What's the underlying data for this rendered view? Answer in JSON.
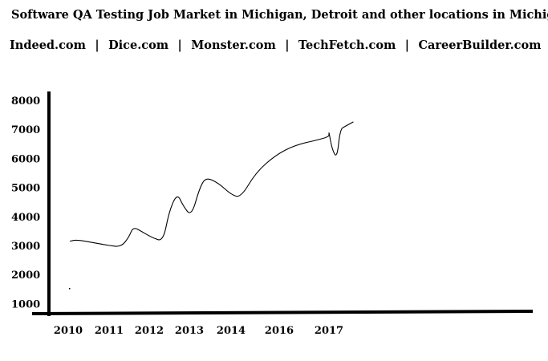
{
  "chart_data": {
    "type": "line",
    "title": "Software QA Testing Job Market in Michigan, Detroit and other locations in Michigan",
    "sources": [
      "Indeed.com",
      "Dice.com",
      "Monster.com",
      "TechFetch.com",
      "CareerBuilder.com"
    ],
    "xlabel": "",
    "ylabel": "",
    "y_ticks": [
      1000,
      2000,
      3000,
      4000,
      5000,
      6000,
      7000,
      8000
    ],
    "x_ticks": [
      "2010",
      "2011",
      "2012",
      "2013",
      "2014",
      "2016",
      "2017"
    ],
    "grid": false,
    "series": [
      {
        "values": [
          {
            "x": 2010.05,
            "y": 3150
          },
          {
            "x": 2010.2,
            "y": 3200
          },
          {
            "x": 2010.6,
            "y": 3100
          },
          {
            "x": 2011.0,
            "y": 3000
          },
          {
            "x": 2011.3,
            "y": 2950
          },
          {
            "x": 2011.5,
            "y": 3300
          },
          {
            "x": 2011.6,
            "y": 3650
          },
          {
            "x": 2011.85,
            "y": 3450
          },
          {
            "x": 2012.1,
            "y": 3250
          },
          {
            "x": 2012.35,
            "y": 3150
          },
          {
            "x": 2012.5,
            "y": 4200
          },
          {
            "x": 2012.7,
            "y": 4800
          },
          {
            "x": 2012.85,
            "y": 4350
          },
          {
            "x": 2013.05,
            "y": 4000
          },
          {
            "x": 2013.25,
            "y": 5000
          },
          {
            "x": 2013.4,
            "y": 5350
          },
          {
            "x": 2013.7,
            "y": 5150
          },
          {
            "x": 2014.0,
            "y": 4750
          },
          {
            "x": 2014.2,
            "y": 4650
          },
          {
            "x": 2014.5,
            "y": 5500
          },
          {
            "x": 2014.9,
            "y": 6100
          },
          {
            "x": 2015.3,
            "y": 6450
          },
          {
            "x": 2015.8,
            "y": 6650
          },
          {
            "x": 2016.2,
            "y": 6750
          },
          {
            "x": 2016.5,
            "y": 6850
          },
          {
            "x": 2016.9,
            "y": 6900
          },
          {
            "x": 2017.1,
            "y": 6300
          },
          {
            "x": 2017.25,
            "y": 6000
          },
          {
            "x": 2017.35,
            "y": 7000
          },
          {
            "x": 2017.5,
            "y": 7100
          },
          {
            "x": 2017.75,
            "y": 7250
          }
        ]
      }
    ]
  }
}
